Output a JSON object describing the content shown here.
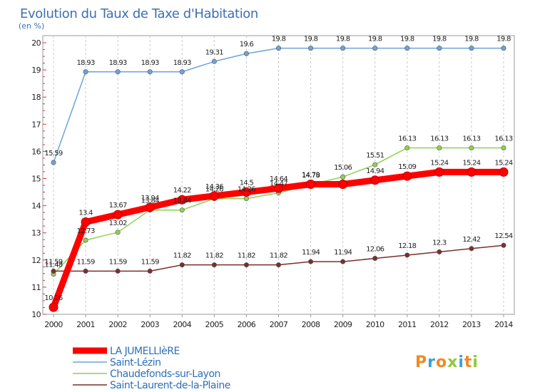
{
  "chart_data": {
    "type": "line",
    "title": "Evolution du Taux de Taxe d'Habitation",
    "subtitle": "(en %)",
    "x": [
      "2000",
      "2001",
      "2002",
      "2003",
      "2004",
      "2005",
      "2006",
      "2007",
      "2008",
      "2009",
      "2010",
      "2011",
      "2012",
      "2013",
      "2014"
    ],
    "y_ticks": [
      "10",
      "11",
      "12",
      "13",
      "14",
      "15",
      "16",
      "17",
      "18",
      "19",
      "20"
    ],
    "ylim": [
      10,
      20
    ],
    "grid": "vertical dashed",
    "series": [
      {
        "name": "LA JUMELLIèRE",
        "color": "#ff0000",
        "values": [
          10.26,
          13.4,
          13.67,
          13.94,
          14.22,
          14.36,
          14.5,
          14.64,
          14.79,
          14.79,
          14.94,
          15.09,
          15.24,
          15.24,
          15.24
        ],
        "labels": [
          "10.26",
          "13.4",
          "13.67",
          "13.94",
          "14.22",
          "14.36",
          "14.5",
          "14.64",
          "14.79",
          "",
          "14.94",
          "15.09",
          "15.24",
          "15.24",
          "15.24"
        ]
      },
      {
        "name": "Saint-Lézin",
        "color": "#6fa3d8",
        "values": [
          15.59,
          18.93,
          18.93,
          18.93,
          18.93,
          19.31,
          19.6,
          19.8,
          19.8,
          19.8,
          19.8,
          19.8,
          19.8,
          19.8,
          19.8
        ],
        "labels": [
          "15.59",
          "18.93",
          "18.93",
          "18.93",
          "18.93",
          "19.31",
          "19.6",
          "19.8",
          "19.8",
          "19.8",
          "19.8",
          "19.8",
          "19.8",
          "19.8",
          "19.8"
        ]
      },
      {
        "name": "Chaudefonds-sur-Layon",
        "color": "#8fd14f",
        "values": [
          11.48,
          12.73,
          13.02,
          13.84,
          13.84,
          14.26,
          14.26,
          14.47,
          14.78,
          15.06,
          15.51,
          16.13,
          16.13,
          16.13,
          16.13
        ],
        "labels": [
          "11.48",
          "12.73",
          "13.02",
          "13.84",
          "13.84",
          "14.26",
          "14.26",
          "14.47",
          "14.78",
          "15.06",
          "15.51",
          "16.13",
          "16.13",
          "16.13",
          "16.13"
        ]
      },
      {
        "name": "Saint-Laurent-de-la-Plaine",
        "color": "#7a2e2e",
        "values": [
          11.59,
          11.59,
          11.59,
          11.59,
          11.82,
          11.82,
          11.82,
          11.82,
          11.94,
          11.94,
          12.06,
          12.18,
          12.3,
          12.42,
          12.54
        ],
        "labels": [
          "11.59",
          "11.59",
          "11.59",
          "11.59",
          "11.82",
          "11.82",
          "11.82",
          "11.82",
          "11.94",
          "11.94",
          "12.06",
          "12.18",
          "12.3",
          "12.42",
          "12.54"
        ]
      }
    ],
    "legend_placement": "bottom-left",
    "logo": {
      "text": "Proxiti",
      "colors": [
        "#f08a24",
        "#3aa1d8",
        "#f08a24",
        "#8fc93a",
        "#3aa1d8",
        "#f08a24",
        "#8fc93a"
      ]
    }
  }
}
